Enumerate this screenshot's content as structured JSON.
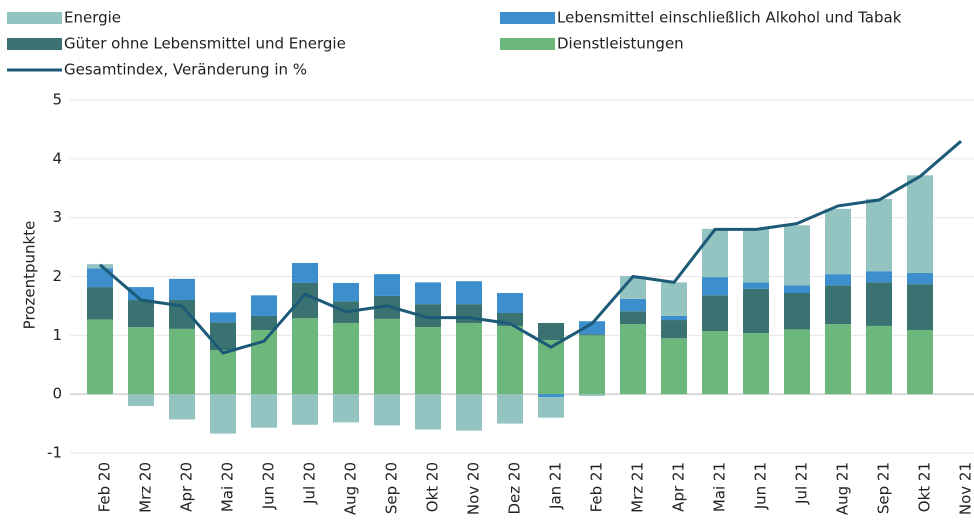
{
  "chart_data": {
    "type": "bar",
    "stacked": true,
    "ylabel": "Prozentpunkte",
    "categories": [
      "Feb 20",
      "Mrz 20",
      "Apr 20",
      "Mai 20",
      "Jun 20",
      "Jul 20",
      "Aug 20",
      "Sep 20",
      "Okt 20",
      "Nov 20",
      "Dez 20",
      "Jan 21",
      "Feb 21",
      "Mrz 21",
      "Apr 21",
      "Mai 21",
      "Jun 21",
      "Jul 21",
      "Aug 21",
      "Sep 21",
      "Okt 21",
      "Nov 21"
    ],
    "ylim": [
      -1,
      5
    ],
    "yticks": [
      -1,
      0,
      1,
      2,
      3,
      4,
      5
    ],
    "grid": true,
    "series": [
      {
        "name": "Dienstleistungen",
        "color": "#6cb87c",
        "values": [
          1.27,
          1.14,
          1.11,
          0.75,
          1.09,
          1.29,
          1.21,
          1.28,
          1.14,
          1.21,
          1.16,
          0.92,
          1.0,
          1.19,
          0.95,
          1.07,
          1.04,
          1.1,
          1.19,
          1.16,
          1.09,
          null
        ]
      },
      {
        "name": "Güter ohne Lebensmittel und Energie",
        "color": "#3a7272",
        "values": [
          0.55,
          0.46,
          0.49,
          0.47,
          0.24,
          0.6,
          0.37,
          0.39,
          0.39,
          0.32,
          0.22,
          0.29,
          0.02,
          0.22,
          0.31,
          0.61,
          0.75,
          0.62,
          0.66,
          0.74,
          0.78,
          null
        ]
      },
      {
        "name": "Lebensmittel einschließlich Alkohol und Tabak",
        "color": "#3c8fcc",
        "values": [
          0.32,
          0.22,
          0.36,
          0.17,
          0.35,
          0.34,
          0.31,
          0.37,
          0.37,
          0.39,
          0.34,
          -0.05,
          0.22,
          0.21,
          0.07,
          0.31,
          0.11,
          0.13,
          0.19,
          0.19,
          0.19,
          null
        ]
      },
      {
        "name": "Energie",
        "color": "#93c4c2",
        "values": [
          0.07,
          -0.2,
          -0.43,
          -0.67,
          -0.57,
          -0.52,
          -0.48,
          -0.53,
          -0.6,
          -0.62,
          -0.5,
          -0.35,
          -0.03,
          0.39,
          0.57,
          0.82,
          0.91,
          1.02,
          1.11,
          1.23,
          1.66,
          null
        ]
      },
      {
        "name": "Gesamtindex, Veränderung in %",
        "type": "line",
        "color": "#1c5a78",
        "values": [
          2.2,
          1.6,
          1.5,
          0.7,
          0.9,
          1.7,
          1.4,
          1.5,
          1.3,
          1.3,
          1.2,
          0.8,
          1.2,
          2.0,
          1.9,
          2.8,
          2.8,
          2.9,
          3.2,
          3.3,
          3.7,
          4.3
        ]
      }
    ]
  }
}
